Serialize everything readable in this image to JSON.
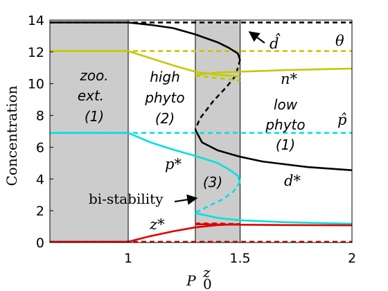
{
  "chart_data": {
    "type": "line",
    "title": "",
    "xlabel": "P",
    "xlabel_sub": "0",
    "xlabel_sup": "z",
    "ylabel": "Concentration",
    "xlim": [
      0.65,
      2.0
    ],
    "ylim": [
      0,
      14
    ],
    "xticks": [
      "1",
      "1.5",
      "2"
    ],
    "yticks": [
      "0",
      "2",
      "4",
      "6",
      "8",
      "10",
      "12",
      "14"
    ],
    "grid": false,
    "colors": {
      "theta": "#000000",
      "d": "#000000",
      "n": "#c6c800",
      "p": "#00e0e0",
      "z": "#e00000",
      "shade": "#cccccc"
    },
    "shaded_regions": [
      {
        "x": [
          0.65,
          1.0
        ],
        "label": "zoo. ext. (1)",
        "lines": [
          "zoo.",
          "ext.",
          "(1)"
        ]
      },
      {
        "x": [
          1.3,
          1.5
        ],
        "label": "(3)",
        "lines": [
          "(3)"
        ]
      }
    ],
    "unshaded_regions": [
      {
        "label": "high phyto (2)",
        "lines": [
          "high",
          "phyto",
          "(2)"
        ]
      },
      {
        "label": "low phyto (1)",
        "lines": [
          "low",
          "phyto",
          "(1)"
        ]
      }
    ],
    "series": [
      {
        "id": "theta_hat",
        "name": "θ",
        "style": "dashed",
        "x": [
          0.65,
          2.0
        ],
        "y": [
          13.85,
          13.85
        ]
      },
      {
        "id": "n_hat",
        "style": "dashed",
        "x": [
          0.65,
          2.0
        ],
        "y": [
          12.05,
          12.05
        ]
      },
      {
        "id": "p_hat",
        "name": "p̂",
        "style": "dashed",
        "x": [
          0.65,
          2.0
        ],
        "y": [
          6.9,
          6.9
        ]
      },
      {
        "id": "z_zero",
        "style": "dashed",
        "x": [
          0.65,
          2.0
        ],
        "y": [
          0.05,
          0.05
        ]
      },
      {
        "id": "d_zoo_ext",
        "style": "solid",
        "x": [
          0.65,
          1.0
        ],
        "y": [
          13.85,
          13.85
        ]
      },
      {
        "id": "n_zoo_ext",
        "style": "solid",
        "x": [
          0.65,
          1.0
        ],
        "y": [
          12.05,
          12.05
        ]
      },
      {
        "id": "p_zoo_ext",
        "style": "solid",
        "x": [
          0.65,
          1.0
        ],
        "y": [
          6.9,
          6.9
        ]
      },
      {
        "id": "z_zoo_ext",
        "style": "solid",
        "x": [
          0.65,
          1.0
        ],
        "y": [
          0.05,
          0.05
        ]
      },
      {
        "id": "d_upper",
        "name": "d̂",
        "style": "solid",
        "x": [
          1.0,
          1.1,
          1.2,
          1.3,
          1.4,
          1.45,
          1.49,
          1.5
        ],
        "y": [
          13.85,
          13.7,
          13.5,
          13.1,
          12.6,
          12.25,
          11.9,
          11.5
        ]
      },
      {
        "id": "d_middle",
        "style": "dashed",
        "x": [
          1.5,
          1.48,
          1.44,
          1.38,
          1.32,
          1.3
        ],
        "y": [
          11.5,
          10.5,
          9.8,
          8.9,
          7.8,
          7.1
        ]
      },
      {
        "id": "d_lower",
        "name": "d*",
        "style": "solid",
        "x": [
          1.3,
          1.33,
          1.4,
          1.5,
          1.6,
          1.8,
          2.0
        ],
        "y": [
          7.1,
          6.3,
          5.8,
          5.4,
          5.1,
          4.75,
          4.55
        ]
      },
      {
        "id": "n_upper",
        "style": "solid",
        "x": [
          1.0,
          1.1,
          1.2,
          1.3,
          1.4,
          1.5
        ],
        "y": [
          12.05,
          11.6,
          11.15,
          10.75,
          10.55,
          10.45
        ]
      },
      {
        "id": "n_middle",
        "style": "dashed",
        "x": [
          1.3,
          1.4,
          1.5
        ],
        "y": [
          10.5,
          10.35,
          10.2
        ]
      },
      {
        "id": "n_lower",
        "name": "n*",
        "style": "solid",
        "x": [
          1.3,
          1.4,
          1.5,
          1.7,
          2.0
        ],
        "y": [
          10.55,
          10.7,
          10.75,
          10.85,
          10.95
        ]
      },
      {
        "id": "p_upper",
        "name": "p*",
        "style": "solid",
        "x": [
          1.0,
          1.1,
          1.2,
          1.3,
          1.4,
          1.45,
          1.49,
          1.5
        ],
        "y": [
          6.9,
          6.3,
          5.85,
          5.45,
          5.0,
          4.6,
          4.2,
          3.8
        ]
      },
      {
        "id": "p_middle",
        "style": "dashed",
        "x": [
          1.5,
          1.47,
          1.42,
          1.36,
          1.32,
          1.3
        ],
        "y": [
          3.8,
          3.2,
          2.7,
          2.3,
          2.0,
          1.9
        ]
      },
      {
        "id": "p_lower",
        "style": "solid",
        "x": [
          1.3,
          1.4,
          1.5,
          1.7,
          2.0
        ],
        "y": [
          1.85,
          1.55,
          1.4,
          1.28,
          1.18
        ]
      },
      {
        "id": "z_upper",
        "name": "z*",
        "style": "solid",
        "x": [
          1.0,
          1.1,
          1.2,
          1.3,
          1.4,
          1.5
        ],
        "y": [
          0.05,
          0.4,
          0.7,
          0.95,
          1.1,
          1.15
        ]
      },
      {
        "id": "z_middle",
        "style": "dashed",
        "x": [
          1.3,
          1.4,
          1.5
        ],
        "y": [
          1.2,
          1.2,
          1.15
        ]
      },
      {
        "id": "z_lower",
        "style": "solid",
        "x": [
          1.3,
          1.5,
          1.7,
          2.0
        ],
        "y": [
          1.15,
          1.12,
          1.1,
          1.08
        ]
      }
    ],
    "annotations": [
      {
        "text": "bi-stability",
        "points_to": [
          1.38,
          2.8
        ]
      },
      {
        "text": "d̂",
        "points_to": [
          1.52,
          13.2
        ]
      }
    ]
  }
}
